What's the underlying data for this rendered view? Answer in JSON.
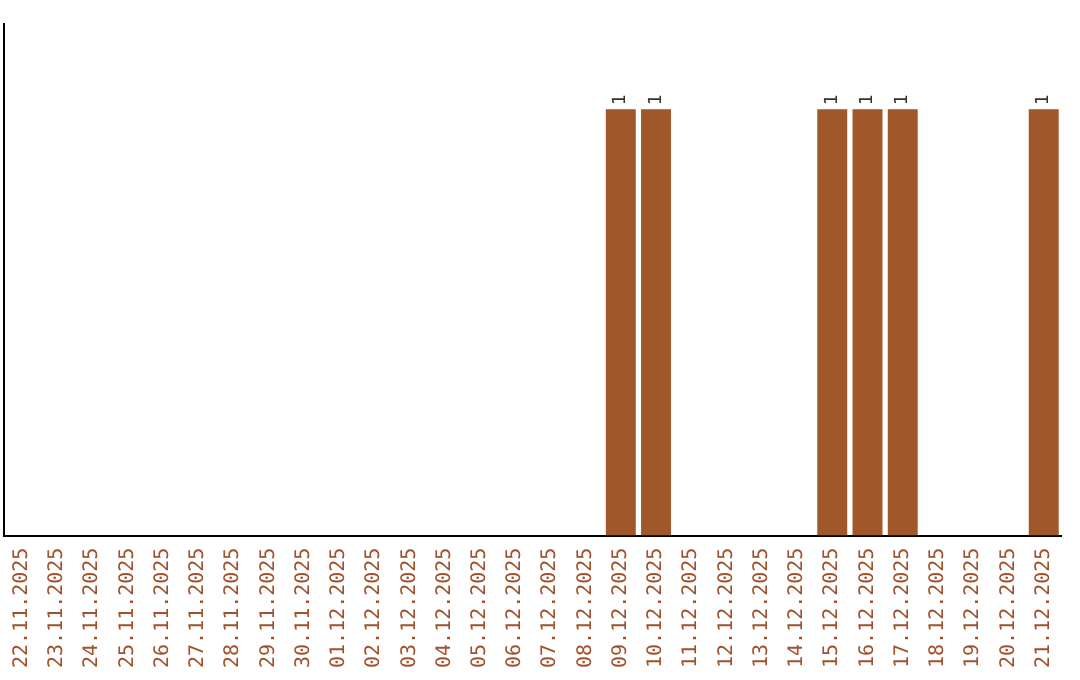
{
  "chart_data": {
    "type": "bar",
    "categories": [
      "22.11.2025",
      "23.11.2025",
      "24.11.2025",
      "25.11.2025",
      "26.11.2025",
      "27.11.2025",
      "28.11.2025",
      "29.11.2025",
      "30.11.2025",
      "01.12.2025",
      "02.12.2025",
      "03.12.2025",
      "04.12.2025",
      "05.12.2025",
      "06.12.2025",
      "07.12.2025",
      "08.12.2025",
      "09.12.2025",
      "10.12.2025",
      "11.12.2025",
      "12.12.2025",
      "13.12.2025",
      "14.12.2025",
      "15.12.2025",
      "16.12.2025",
      "17.12.2025",
      "18.12.2025",
      "19.12.2025",
      "20.12.2025",
      "21.12.2025"
    ],
    "values": [
      null,
      null,
      null,
      null,
      null,
      null,
      null,
      null,
      null,
      null,
      null,
      null,
      null,
      null,
      null,
      null,
      null,
      1,
      1,
      null,
      null,
      null,
      null,
      1,
      1,
      1,
      null,
      null,
      null,
      1
    ],
    "data_labels": true,
    "color": "#a0582a",
    "grid": false,
    "legend": false,
    "tick_labels": "x"
  }
}
